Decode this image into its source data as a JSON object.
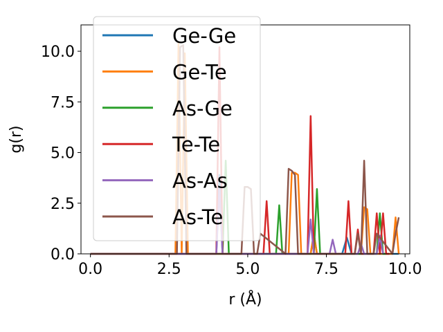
{
  "chart_data": {
    "type": "line",
    "xlabel": "r (Å)",
    "ylabel": "g(r)",
    "xlim": [
      -0.3,
      10.15
    ],
    "ylim": [
      0,
      11.3
    ],
    "xticks": [
      0.0,
      2.5,
      5.0,
      7.5,
      10.0
    ],
    "xtick_labels": [
      "0.0",
      "2.5",
      "5.0",
      "7.5",
      "10.0"
    ],
    "yticks": [
      0.0,
      2.5,
      5.0,
      7.5,
      10.0
    ],
    "ytick_labels": [
      "0.0",
      "2.5",
      "5.0",
      "7.5",
      "10.0"
    ],
    "grid": false,
    "legend_position": "upper-left",
    "series": [
      {
        "name": "Ge-Ge",
        "color": "#1f77b4",
        "x": [
          0.0,
          2.7,
          4.0,
          4.1,
          4.2,
          4.4,
          5.0,
          7.0,
          7.1,
          7.2,
          8.0,
          8.15,
          8.3,
          9.6,
          9.8
        ],
        "y": [
          0.0,
          0.0,
          0.0,
          3.9,
          0.0,
          0.0,
          0.0,
          0.0,
          1.0,
          0.0,
          0.0,
          0.8,
          0.0,
          0.0,
          0.0
        ]
      },
      {
        "name": "Ge-Te",
        "color": "#ff7f0e",
        "x": [
          0.0,
          2.7,
          2.8,
          2.9,
          3.0,
          3.1,
          5.8,
          6.3,
          6.4,
          6.5,
          6.6,
          6.7,
          7.0,
          7.1,
          7.2,
          8.6,
          8.7,
          8.8,
          8.9,
          9.0,
          9.6,
          9.7,
          9.8
        ],
        "y": [
          0.0,
          0.0,
          10.4,
          0.0,
          9.9,
          0.0,
          0.0,
          0.0,
          4.0,
          4.0,
          3.9,
          0.0,
          0.0,
          1.0,
          0.0,
          0.0,
          2.3,
          2.2,
          0.0,
          0.0,
          0.0,
          1.8,
          0.0
        ]
      },
      {
        "name": "As-Ge",
        "color": "#2ca02c",
        "x": [
          0.0,
          4.2,
          4.3,
          4.4,
          5.9,
          6.0,
          6.1,
          7.1,
          7.2,
          7.3,
          7.4,
          9.1,
          9.2,
          9.3,
          9.4
        ],
        "y": [
          0.0,
          0.0,
          4.6,
          0.0,
          0.0,
          2.4,
          0.0,
          0.0,
          3.2,
          0.0,
          0.0,
          0.0,
          2.0,
          0.0,
          0.0
        ]
      },
      {
        "name": "Te-Te",
        "color": "#d62728",
        "x": [
          0.0,
          4.0,
          4.1,
          4.2,
          5.5,
          5.6,
          5.7,
          5.8,
          6.9,
          7.0,
          7.1,
          7.2,
          7.3,
          8.1,
          8.2,
          8.3,
          8.4,
          8.5,
          8.6,
          9.0,
          9.1,
          9.2,
          9.3,
          9.4,
          9.5
        ],
        "y": [
          0.0,
          0.0,
          10.2,
          0.0,
          0.0,
          2.6,
          0.0,
          0.0,
          0.0,
          6.8,
          0.0,
          0.0,
          0.0,
          0.0,
          2.6,
          0.0,
          0.0,
          1.2,
          0.0,
          0.0,
          2.0,
          0.0,
          2.0,
          0.0,
          0.0
        ]
      },
      {
        "name": "As-As",
        "color": "#9467bd",
        "x": [
          0.0,
          4.0,
          4.1,
          4.2,
          6.9,
          7.0,
          7.1,
          7.6,
          7.7,
          7.8,
          8.5,
          8.6,
          8.7,
          9.1,
          9.2,
          9.3
        ],
        "y": [
          0.0,
          0.0,
          3.2,
          0.0,
          0.0,
          1.7,
          0.0,
          0.0,
          0.7,
          0.0,
          0.0,
          0.5,
          0.0,
          0.0,
          0.9,
          0.0
        ]
      },
      {
        "name": "As-Te",
        "color": "#8c564b",
        "x": [
          0.0,
          2.75,
          2.85,
          2.95,
          3.05,
          4.8,
          4.9,
          5.0,
          5.1,
          5.2,
          5.3,
          5.4,
          6.2,
          6.3,
          6.4,
          6.5,
          6.6,
          8.4,
          8.5,
          8.6,
          8.7,
          8.8,
          9.0,
          9.1,
          9.6,
          9.7,
          9.8
        ],
        "y": [
          0.0,
          0.0,
          10.2,
          10.3,
          0.0,
          0.0,
          3.3,
          3.3,
          3.2,
          0.0,
          0.0,
          1.0,
          0.0,
          4.2,
          4.1,
          3.9,
          0.0,
          0.0,
          1.0,
          0.0,
          4.6,
          0.0,
          0.0,
          1.0,
          0.0,
          1.0,
          1.8
        ]
      }
    ]
  }
}
